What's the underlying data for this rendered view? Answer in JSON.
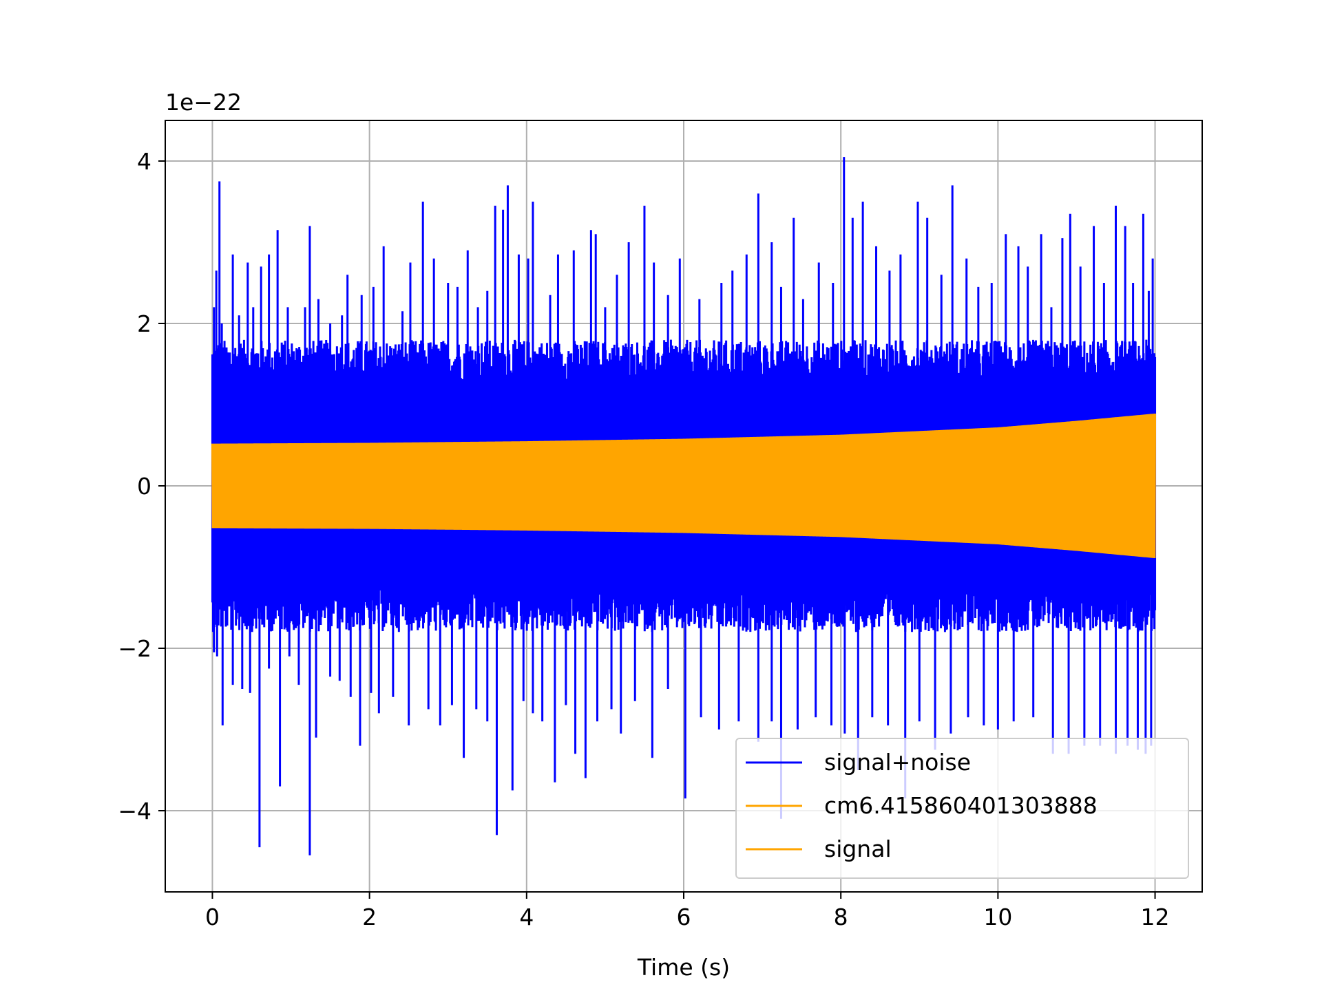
{
  "chart_data": {
    "type": "line",
    "title": "",
    "xlabel": "Time (s)",
    "ylabel": "",
    "y_offset_label": "1e−22",
    "xlim": [
      -0.6,
      12.6
    ],
    "ylim": [
      -5.0,
      4.5
    ],
    "xticks": [
      0,
      2,
      4,
      6,
      8,
      10,
      12
    ],
    "xtick_labels": [
      "0",
      "2",
      "4",
      "6",
      "8",
      "10",
      "12"
    ],
    "yticks": [
      -4,
      -2,
      0,
      2,
      4
    ],
    "ytick_labels": [
      "−4",
      "−2",
      "0",
      "2",
      "4"
    ],
    "grid": true,
    "legend_position": "lower right",
    "series": [
      {
        "name": "signal+noise",
        "color": "#0000ff",
        "x_range": [
          0,
          12
        ],
        "typical_band": [
          -1.5,
          1.5
        ],
        "upper_spikes": [
          [
            0.02,
            2.2
          ],
          [
            0.05,
            2.65
          ],
          [
            0.09,
            3.75
          ],
          [
            0.12,
            2.0
          ],
          [
            0.26,
            2.85
          ],
          [
            0.34,
            2.1
          ],
          [
            0.45,
            2.75
          ],
          [
            0.52,
            2.2
          ],
          [
            0.62,
            2.7
          ],
          [
            0.72,
            2.85
          ],
          [
            0.83,
            3.15
          ],
          [
            0.96,
            2.2
          ],
          [
            1.18,
            2.2
          ],
          [
            1.24,
            3.2
          ],
          [
            1.35,
            2.3
          ],
          [
            1.5,
            2.0
          ],
          [
            1.65,
            2.1
          ],
          [
            1.72,
            2.6
          ],
          [
            1.9,
            2.35
          ],
          [
            2.05,
            2.45
          ],
          [
            2.18,
            2.95
          ],
          [
            2.42,
            2.15
          ],
          [
            2.52,
            2.75
          ],
          [
            2.68,
            3.5
          ],
          [
            2.82,
            2.8
          ],
          [
            3.0,
            2.5
          ],
          [
            3.12,
            2.45
          ],
          [
            3.25,
            2.9
          ],
          [
            3.38,
            2.2
          ],
          [
            3.5,
            2.4
          ],
          [
            3.6,
            3.45
          ],
          [
            3.7,
            3.4
          ],
          [
            3.76,
            3.7
          ],
          [
            3.9,
            2.85
          ],
          [
            4.02,
            2.8
          ],
          [
            4.08,
            3.5
          ],
          [
            4.3,
            2.35
          ],
          [
            4.4,
            2.85
          ],
          [
            4.6,
            2.9
          ],
          [
            4.82,
            3.15
          ],
          [
            4.88,
            3.1
          ],
          [
            5.0,
            2.2
          ],
          [
            5.15,
            2.6
          ],
          [
            5.3,
            3.0
          ],
          [
            5.5,
            3.45
          ],
          [
            5.62,
            2.75
          ],
          [
            5.8,
            2.35
          ],
          [
            5.95,
            2.8
          ],
          [
            6.2,
            2.3
          ],
          [
            6.48,
            2.5
          ],
          [
            6.62,
            2.65
          ],
          [
            6.8,
            2.85
          ],
          [
            6.95,
            3.6
          ],
          [
            7.12,
            3.0
          ],
          [
            7.24,
            2.45
          ],
          [
            7.4,
            3.3
          ],
          [
            7.52,
            2.3
          ],
          [
            7.72,
            2.75
          ],
          [
            7.9,
            2.5
          ],
          [
            8.04,
            4.05
          ],
          [
            8.15,
            3.3
          ],
          [
            8.28,
            3.5
          ],
          [
            8.45,
            2.95
          ],
          [
            8.62,
            2.65
          ],
          [
            8.76,
            2.85
          ],
          [
            8.98,
            3.5
          ],
          [
            9.1,
            3.3
          ],
          [
            9.28,
            2.6
          ],
          [
            9.42,
            3.7
          ],
          [
            9.6,
            2.8
          ],
          [
            9.75,
            2.45
          ],
          [
            9.92,
            2.5
          ],
          [
            10.1,
            3.1
          ],
          [
            10.26,
            2.95
          ],
          [
            10.38,
            2.7
          ],
          [
            10.55,
            3.1
          ],
          [
            10.68,
            2.2
          ],
          [
            10.82,
            3.05
          ],
          [
            10.92,
            3.35
          ],
          [
            11.05,
            2.7
          ],
          [
            11.22,
            3.2
          ],
          [
            11.35,
            2.5
          ],
          [
            11.5,
            3.45
          ],
          [
            11.62,
            3.2
          ],
          [
            11.72,
            2.5
          ],
          [
            11.85,
            3.35
          ],
          [
            11.92,
            2.4
          ],
          [
            11.97,
            2.8
          ]
        ],
        "lower_spikes": [
          [
            0.02,
            -2.05
          ],
          [
            0.06,
            -2.1
          ],
          [
            0.13,
            -2.95
          ],
          [
            0.26,
            -2.45
          ],
          [
            0.38,
            -2.5
          ],
          [
            0.48,
            -2.55
          ],
          [
            0.6,
            -4.45
          ],
          [
            0.72,
            -2.25
          ],
          [
            0.86,
            -3.7
          ],
          [
            0.98,
            -2.1
          ],
          [
            1.1,
            -2.45
          ],
          [
            1.24,
            -4.55
          ],
          [
            1.32,
            -3.1
          ],
          [
            1.5,
            -2.35
          ],
          [
            1.62,
            -2.4
          ],
          [
            1.76,
            -2.6
          ],
          [
            1.88,
            -3.2
          ],
          [
            2.02,
            -2.55
          ],
          [
            2.12,
            -2.8
          ],
          [
            2.3,
            -2.6
          ],
          [
            2.5,
            -2.95
          ],
          [
            2.75,
            -2.75
          ],
          [
            2.9,
            -2.95
          ],
          [
            3.05,
            -2.7
          ],
          [
            3.2,
            -3.35
          ],
          [
            3.36,
            -2.75
          ],
          [
            3.5,
            -2.9
          ],
          [
            3.62,
            -4.3
          ],
          [
            3.82,
            -3.75
          ],
          [
            3.96,
            -2.65
          ],
          [
            4.08,
            -2.8
          ],
          [
            4.2,
            -2.9
          ],
          [
            4.36,
            -3.65
          ],
          [
            4.5,
            -2.7
          ],
          [
            4.62,
            -3.3
          ],
          [
            4.75,
            -3.6
          ],
          [
            4.9,
            -2.9
          ],
          [
            5.08,
            -2.75
          ],
          [
            5.2,
            -3.05
          ],
          [
            5.38,
            -2.65
          ],
          [
            5.6,
            -3.35
          ],
          [
            5.8,
            -2.5
          ],
          [
            6.02,
            -3.85
          ],
          [
            6.22,
            -2.85
          ],
          [
            6.45,
            -3.0
          ],
          [
            6.7,
            -2.9
          ],
          [
            6.95,
            -3.15
          ],
          [
            7.12,
            -2.9
          ],
          [
            7.24,
            -4.1
          ],
          [
            7.45,
            -3.0
          ],
          [
            7.68,
            -2.85
          ],
          [
            7.88,
            -2.95
          ],
          [
            8.05,
            -3.05
          ],
          [
            8.22,
            -3.5
          ],
          [
            8.4,
            -2.85
          ],
          [
            8.6,
            -2.95
          ],
          [
            8.82,
            -3.85
          ],
          [
            9.0,
            -2.9
          ],
          [
            9.2,
            -3.25
          ],
          [
            9.4,
            -3.05
          ],
          [
            9.62,
            -2.85
          ],
          [
            9.82,
            -2.95
          ],
          [
            10.0,
            -3.0
          ],
          [
            10.2,
            -2.9
          ],
          [
            10.45,
            -2.85
          ],
          [
            10.7,
            -3.3
          ],
          [
            10.9,
            -3.3
          ],
          [
            11.1,
            -3.2
          ],
          [
            11.3,
            -3.2
          ],
          [
            11.5,
            -3.3
          ],
          [
            11.65,
            -3.2
          ],
          [
            11.78,
            -3.25
          ],
          [
            11.88,
            -3.3
          ],
          [
            11.95,
            -3.2
          ]
        ]
      },
      {
        "name": "cm6.415860401303888",
        "color": "#ffa500",
        "x_range": [
          0,
          12
        ],
        "amplitude_envelope": [
          [
            0,
            0.52
          ],
          [
            2,
            0.53
          ],
          [
            4,
            0.55
          ],
          [
            6,
            0.58
          ],
          [
            8,
            0.63
          ],
          [
            10,
            0.72
          ],
          [
            11,
            0.8
          ],
          [
            12,
            0.89
          ]
        ]
      },
      {
        "name": "signal",
        "color": "#ffa500",
        "x_range": [
          0,
          12
        ],
        "amplitude_envelope": [
          [
            0,
            0.52
          ],
          [
            2,
            0.53
          ],
          [
            4,
            0.55
          ],
          [
            6,
            0.58
          ],
          [
            8,
            0.63
          ],
          [
            10,
            0.72
          ],
          [
            11,
            0.8
          ],
          [
            12,
            0.89
          ]
        ]
      }
    ]
  }
}
